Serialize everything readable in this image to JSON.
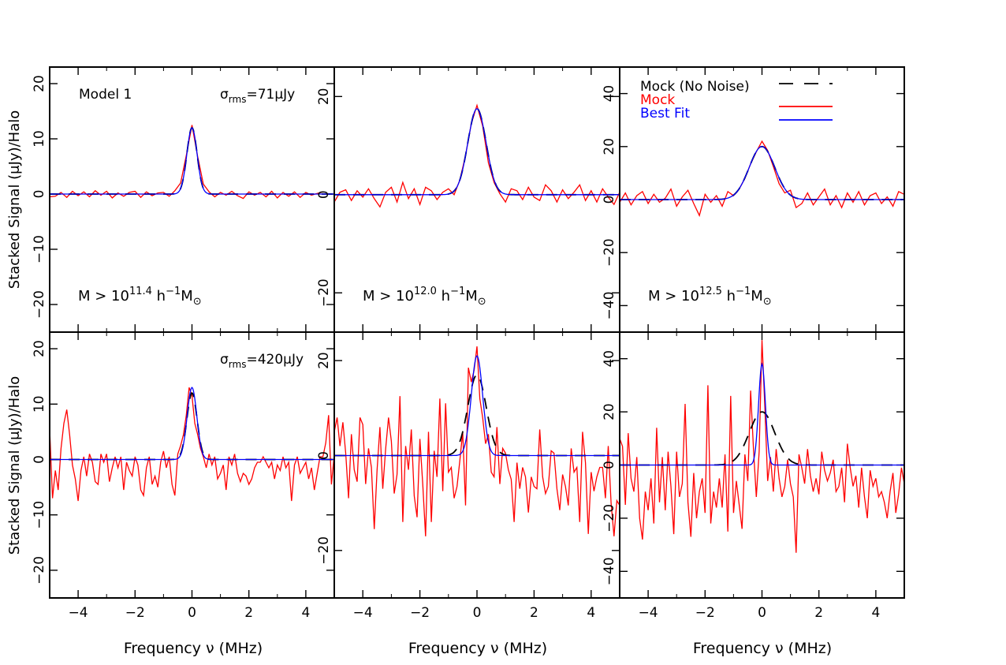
{
  "figure": {
    "ylabel": "Stacked Signal (μJy)/Halo",
    "xlabel": "Frequency ν (MHz)"
  },
  "colors": {
    "mock_no_noise": "#000000",
    "mock": "#ff0000",
    "best_fit": "#0000ff",
    "axes": "#000000"
  },
  "legend": {
    "position": "top-right of panel 3",
    "entries": [
      {
        "label": "Mock (No Noise)",
        "series": "mock_no_noise",
        "style": "dashed"
      },
      {
        "label": "Mock",
        "series": "mock",
        "style": "solid"
      },
      {
        "label": "Best Fit",
        "series": "best_fit",
        "style": "solid"
      }
    ]
  },
  "chart_data": [
    {
      "type": "line",
      "panel": "top-left",
      "xlim": [
        -5,
        5
      ],
      "ylim": [
        -25,
        23
      ],
      "xticks": [
        -4,
        -2,
        0,
        2,
        4
      ],
      "yticks": [
        -20,
        -10,
        0,
        10,
        20
      ],
      "model_label": "Model 1",
      "noise_label": {
        "prefix": "σ",
        "sub": "rms",
        "value": "=71μJy"
      },
      "mass_label": {
        "text": "M > 10",
        "exp": "11.4",
        "unit": " h",
        "unit_exp": "−1",
        "tail": "M",
        "tail_sub": "⊙"
      },
      "amplitude": 12,
      "width": 0.18,
      "mock_x": [
        -5.0,
        -4.8,
        -4.6,
        -4.4,
        -4.2,
        -4.0,
        -3.8,
        -3.6,
        -3.4,
        -3.2,
        -3.0,
        -2.8,
        -2.6,
        -2.4,
        -2.2,
        -2.0,
        -1.8,
        -1.6,
        -1.4,
        -1.2,
        -1.0,
        -0.8,
        -0.6,
        -0.4,
        -0.2,
        0.0,
        0.2,
        0.4,
        0.6,
        0.8,
        1.0,
        1.2,
        1.4,
        1.6,
        1.8,
        2.0,
        2.2,
        2.4,
        2.6,
        2.8,
        3.0,
        3.2,
        3.4,
        3.6,
        3.8,
        4.0,
        4.2,
        4.4,
        4.6
      ],
      "mock_y": [
        -0.5,
        -0.4,
        0.3,
        -0.6,
        0.5,
        -0.3,
        0.4,
        -0.5,
        0.6,
        -0.2,
        0.5,
        -0.7,
        0.2,
        -0.4,
        0.3,
        0.5,
        -0.6,
        0.4,
        -0.3,
        0.2,
        0.3,
        -0.4,
        0.6,
        2.0,
        7.0,
        12.5,
        6.8,
        1.8,
        0.4,
        -0.5,
        0.3,
        -0.2,
        0.5,
        -0.3,
        -0.8,
        0.4,
        -0.2,
        0.3,
        -0.5,
        0.5,
        -0.7,
        0.3,
        -0.4,
        0.4,
        -0.6,
        0.3,
        -0.2,
        0.1,
        0.4
      ]
    },
    {
      "type": "line",
      "panel": "top-middle",
      "xlim": [
        -5,
        5
      ],
      "ylim": [
        -28,
        26
      ],
      "xticks": [
        -4,
        -2,
        0,
        2,
        4
      ],
      "yticks": [
        -20,
        0,
        20
      ],
      "mass_label": {
        "text": "M > 10",
        "exp": "12.0",
        "unit": " h",
        "unit_exp": "−1",
        "tail": "M",
        "tail_sub": "⊙"
      },
      "amplitude": 17.5,
      "width": 0.32,
      "mock_x": [
        -5.0,
        -4.8,
        -4.6,
        -4.4,
        -4.2,
        -4.0,
        -3.8,
        -3.6,
        -3.4,
        -3.2,
        -3.0,
        -2.8,
        -2.6,
        -2.4,
        -2.2,
        -2.0,
        -1.8,
        -1.6,
        -1.4,
        -1.2,
        -1.0,
        -0.8,
        -0.6,
        -0.4,
        -0.2,
        0.0,
        0.2,
        0.4,
        0.6,
        0.8,
        1.0,
        1.2,
        1.4,
        1.6,
        1.8,
        2.0,
        2.2,
        2.4,
        2.6,
        2.8,
        3.0,
        3.2,
        3.4,
        3.6,
        3.8,
        4.0,
        4.2,
        4.4,
        4.6,
        4.8,
        5.0
      ],
      "mock_y": [
        -1.5,
        0.5,
        1.0,
        -1.2,
        0.8,
        -0.5,
        1.2,
        -0.8,
        -2.5,
        0.5,
        1.5,
        -1.5,
        2.5,
        -0.8,
        1.2,
        -2.0,
        1.5,
        0.8,
        -1.0,
        0.5,
        1.2,
        0.0,
        3.0,
        8.0,
        14.5,
        18.2,
        14.0,
        6.5,
        2.5,
        0.2,
        -1.5,
        1.2,
        0.8,
        -1.0,
        1.5,
        -0.5,
        -1.2,
        2.0,
        0.8,
        -1.5,
        1.0,
        -0.8,
        0.5,
        2.0,
        -1.2,
        0.8,
        -1.5,
        1.2,
        -0.5,
        -2.0,
        0.5
      ]
    },
    {
      "type": "line",
      "panel": "top-right",
      "xlim": [
        -5,
        5
      ],
      "ylim": [
        -50,
        50
      ],
      "xticks": [
        -4,
        -2,
        0,
        2,
        4
      ],
      "yticks": [
        -40,
        -20,
        0,
        20,
        40
      ],
      "mass_label": {
        "text": "M > 10",
        "exp": "12.5",
        "unit": " h",
        "unit_exp": "−1",
        "tail": "M",
        "tail_sub": "⊙"
      },
      "amplitude": 20,
      "width": 0.45,
      "mock_x": [
        -5.0,
        -4.8,
        -4.6,
        -4.4,
        -4.2,
        -4.0,
        -3.8,
        -3.6,
        -3.4,
        -3.2,
        -3.0,
        -2.8,
        -2.6,
        -2.4,
        -2.2,
        -2.0,
        -1.8,
        -1.6,
        -1.4,
        -1.2,
        -1.0,
        -0.8,
        -0.6,
        -0.4,
        -0.2,
        0.0,
        0.2,
        0.4,
        0.6,
        0.8,
        1.0,
        1.2,
        1.4,
        1.6,
        1.8,
        2.0,
        2.2,
        2.4,
        2.6,
        2.8,
        3.0,
        3.2,
        3.4,
        3.6,
        3.8,
        4.0,
        4.2,
        4.4,
        4.6,
        4.8,
        5.0
      ],
      "mock_y": [
        -1.0,
        2.5,
        -2.0,
        1.5,
        3.0,
        -1.5,
        2.0,
        -1.0,
        0.5,
        4.0,
        -2.5,
        1.0,
        3.5,
        -1.5,
        -6.0,
        2.0,
        -1.0,
        1.5,
        -2.5,
        3.0,
        1.5,
        4.0,
        8.0,
        13.5,
        18.0,
        22.0,
        18.5,
        12.5,
        6.0,
        2.5,
        3.5,
        -3.0,
        -1.5,
        2.5,
        -2.0,
        1.0,
        4.0,
        -2.0,
        1.5,
        -3.0,
        2.5,
        -1.0,
        3.0,
        -2.0,
        1.5,
        2.5,
        -1.5,
        1.0,
        -2.5,
        3.0,
        2.0
      ]
    },
    {
      "type": "line",
      "panel": "bottom-left",
      "xlim": [
        -5,
        5
      ],
      "ylim": [
        -25,
        23
      ],
      "xticks": [
        -4,
        -2,
        0,
        2,
        4
      ],
      "yticks": [
        -20,
        -10,
        0,
        10,
        20
      ],
      "noise_label": {
        "prefix": "σ",
        "sub": "rms",
        "value": "=420μJy"
      },
      "amplitude": 12,
      "width": 0.18,
      "fit_amplitude": 13,
      "fit_width": 0.17,
      "mock_x": [
        -5.0,
        -4.9,
        -4.8,
        -4.7,
        -4.6,
        -4.5,
        -4.4,
        -4.3,
        -4.2,
        -4.1,
        -4.0,
        -3.9,
        -3.8,
        -3.7,
        -3.6,
        -3.5,
        -3.4,
        -3.3,
        -3.2,
        -3.1,
        -3.0,
        -2.9,
        -2.8,
        -2.7,
        -2.6,
        -2.5,
        -2.4,
        -2.3,
        -2.2,
        -2.1,
        -2.0,
        -1.9,
        -1.8,
        -1.7,
        -1.6,
        -1.5,
        -1.4,
        -1.3,
        -1.2,
        -1.1,
        -1.0,
        -0.9,
        -0.8,
        -0.7,
        -0.6,
        -0.5,
        -0.4,
        -0.3,
        -0.2,
        -0.1,
        0.0,
        0.1,
        0.2,
        0.3,
        0.4,
        0.5,
        0.6,
        0.7,
        0.8,
        0.9,
        1.0,
        1.1,
        1.2,
        1.3,
        1.4,
        1.5,
        1.6,
        1.7,
        1.8,
        1.9,
        2.0,
        2.1,
        2.2,
        2.3,
        2.4,
        2.5,
        2.6,
        2.7,
        2.8,
        2.9,
        3.0,
        3.1,
        3.2,
        3.3,
        3.4,
        3.5,
        3.6,
        3.7,
        3.8,
        3.9,
        4.0,
        4.1,
        4.2,
        4.3,
        4.4,
        4.5,
        4.6,
        4.7,
        4.8,
        4.9,
        5.0
      ],
      "mock_y": [
        5.5,
        -7.0,
        -2.0,
        -5.5,
        2.0,
        6.5,
        9.0,
        4.5,
        -1.0,
        -3.5,
        -7.5,
        -2.0,
        0.5,
        -3.0,
        1.0,
        -0.5,
        -4.0,
        -4.5,
        1.0,
        -0.5,
        1.0,
        -4.0,
        -1.5,
        0.5,
        -1.5,
        0.5,
        -5.5,
        -0.5,
        -2.0,
        -3.0,
        0.5,
        -1.0,
        -5.5,
        -6.5,
        -1.5,
        0.5,
        -4.5,
        -3.0,
        -5.0,
        -0.5,
        1.5,
        -1.5,
        0.5,
        -4.5,
        -6.5,
        1.0,
        2.5,
        4.5,
        8.0,
        13.0,
        11.5,
        6.5,
        4.5,
        2.0,
        0.5,
        -1.5,
        1.0,
        -1.0,
        0.5,
        -3.5,
        -2.5,
        -1.0,
        -5.5,
        0.5,
        -1.0,
        1.0,
        -2.5,
        -4.0,
        -2.5,
        -3.0,
        -4.5,
        -3.5,
        -1.5,
        -0.5,
        -0.5,
        0.5,
        -0.5,
        -1.5,
        -0.5,
        -3.5,
        -1.0,
        -2.0,
        0.5,
        -1.5,
        -0.5,
        -7.5,
        -1.0,
        0.5,
        -2.5,
        -1.5,
        -0.5,
        -3.5,
        -1.5,
        -5.5,
        -2.5,
        0.5,
        0.5,
        3.0,
        8.0,
        -4.5,
        1.0
      ]
    },
    {
      "type": "line",
      "panel": "bottom-middle",
      "xlim": [
        -5,
        5
      ],
      "ylim": [
        -30,
        26
      ],
      "xticks": [
        -4,
        -2,
        0,
        2,
        4
      ],
      "yticks": [
        -20,
        0,
        20
      ],
      "amplitude": 17,
      "width": 0.32,
      "fit_amplitude": 21,
      "fit_width": 0.2,
      "mock_x": [
        -5.0,
        -4.9,
        -4.8,
        -4.7,
        -4.6,
        -4.5,
        -4.4,
        -4.3,
        -4.2,
        -4.1,
        -4.0,
        -3.9,
        -3.8,
        -3.7,
        -3.6,
        -3.5,
        -3.4,
        -3.3,
        -3.2,
        -3.1,
        -3.0,
        -2.9,
        -2.8,
        -2.7,
        -2.6,
        -2.5,
        -2.4,
        -2.3,
        -2.2,
        -2.1,
        -2.0,
        -1.9,
        -1.8,
        -1.7,
        -1.6,
        -1.5,
        -1.4,
        -1.3,
        -1.2,
        -1.1,
        -1.0,
        -0.9,
        -0.8,
        -0.7,
        -0.6,
        -0.5,
        -0.4,
        -0.3,
        -0.2,
        -0.1,
        0.0,
        0.1,
        0.2,
        0.3,
        0.4,
        0.5,
        0.6,
        0.7,
        0.8,
        0.9,
        1.0,
        1.1,
        1.2,
        1.3,
        1.4,
        1.5,
        1.6,
        1.7,
        1.8,
        1.9,
        2.0,
        2.1,
        2.2,
        2.3,
        2.4,
        2.5,
        2.6,
        2.7,
        2.8,
        2.9,
        3.0,
        3.1,
        3.2,
        3.3,
        3.4,
        3.5,
        3.6,
        3.7,
        3.8,
        3.9,
        4.0,
        4.1,
        4.2,
        4.3,
        4.4,
        4.5,
        4.6,
        4.7,
        4.8,
        4.9,
        5.0
      ],
      "mock_y": [
        5.0,
        8.0,
        2.0,
        7.0,
        0.5,
        -9.0,
        4.5,
        -3.0,
        -5.5,
        8.0,
        6.5,
        -6.0,
        1.5,
        -2.5,
        -15.5,
        -3.0,
        6.0,
        -7.0,
        1.5,
        8.0,
        3.0,
        -8.0,
        -4.0,
        12.5,
        -14.0,
        2.0,
        -3.0,
        5.5,
        -8.5,
        -13.0,
        3.5,
        -6.0,
        -17.0,
        5.0,
        -14.0,
        1.0,
        -4.5,
        12.0,
        -7.5,
        11.0,
        -3.5,
        -2.5,
        -9.0,
        -6.5,
        -1.0,
        5.0,
        -10.5,
        18.5,
        15.5,
        18.0,
        23.0,
        12.0,
        8.0,
        2.5,
        4.5,
        -3.5,
        -4.5,
        6.0,
        -6.0,
        1.5,
        0.5,
        -3.0,
        -5.0,
        -14.0,
        -1.5,
        -7.0,
        -2.5,
        -4.5,
        -12.0,
        -4.5,
        -6.5,
        -7.0,
        5.5,
        -4.5,
        -8.0,
        -6.5,
        1.0,
        0.5,
        -7.0,
        -11.5,
        -4.0,
        -6.5,
        -10.5,
        1.5,
        -3.5,
        -2.5,
        -14.0,
        5.0,
        -1.5,
        -16.5,
        -3.5,
        -7.5,
        -4.5,
        -2.5,
        -2.5,
        -9.0,
        2.0,
        -10.0,
        -17.0,
        -9.5,
        -10.5
      ]
    },
    {
      "type": "line",
      "panel": "bottom-right",
      "xlim": [
        -5,
        5
      ],
      "ylim": [
        -50,
        50
      ],
      "xticks": [
        -4,
        -2,
        0,
        2,
        4
      ],
      "yticks": [
        -40,
        -20,
        0,
        20,
        40
      ],
      "amplitude": 20,
      "width": 0.45,
      "fit_amplitude": 38,
      "fit_width": 0.12,
      "mock_x": [
        -5.0,
        -4.9,
        -4.8,
        -4.7,
        -4.6,
        -4.5,
        -4.4,
        -4.3,
        -4.2,
        -4.1,
        -4.0,
        -3.9,
        -3.8,
        -3.7,
        -3.6,
        -3.5,
        -3.4,
        -3.3,
        -3.2,
        -3.1,
        -3.0,
        -2.9,
        -2.8,
        -2.7,
        -2.6,
        -2.5,
        -2.4,
        -2.3,
        -2.2,
        -2.1,
        -2.0,
        -1.9,
        -1.8,
        -1.7,
        -1.6,
        -1.5,
        -1.4,
        -1.3,
        -1.2,
        -1.1,
        -1.0,
        -0.9,
        -0.8,
        -0.7,
        -0.6,
        -0.5,
        -0.4,
        -0.3,
        -0.2,
        -0.1,
        0.0,
        0.1,
        0.2,
        0.3,
        0.4,
        0.5,
        0.6,
        0.7,
        0.8,
        0.9,
        1.0,
        1.1,
        1.2,
        1.3,
        1.4,
        1.5,
        1.6,
        1.7,
        1.8,
        1.9,
        2.0,
        2.1,
        2.2,
        2.3,
        2.4,
        2.5,
        2.6,
        2.7,
        2.8,
        2.9,
        3.0,
        3.1,
        3.2,
        3.3,
        3.4,
        3.5,
        3.6,
        3.7,
        3.8,
        3.9,
        4.0,
        4.1,
        4.2,
        4.3,
        4.4,
        4.5,
        4.6,
        4.7,
        4.8,
        4.9,
        5.0
      ],
      "mock_y": [
        10.0,
        7.0,
        -15.0,
        12.0,
        -5.0,
        -10.0,
        3.0,
        -20.0,
        -28.0,
        -10.0,
        -17.0,
        -5.0,
        -22.0,
        14.0,
        -14.0,
        3.0,
        -17.0,
        5.0,
        -8.0,
        -26.0,
        5.0,
        -12.0,
        -7.0,
        23.0,
        -14.0,
        -27.0,
        -3.0,
        -20.0,
        -10.0,
        -5.0,
        -18.0,
        30.0,
        -22.0,
        -10.0,
        -16.0,
        -5.0,
        -16.0,
        4.0,
        -25.0,
        26.0,
        -18.0,
        -6.0,
        -15.0,
        -24.0,
        4.0,
        -6.0,
        28.0,
        6.0,
        -12.0,
        5.0,
        47.0,
        22.0,
        -6.0,
        3.0,
        -10.0,
        6.0,
        -5.0,
        -12.0,
        -8.0,
        2.0,
        -7.0,
        -12.0,
        -33.0,
        4.0,
        -1.0,
        -7.0,
        6.0,
        -4.0,
        -10.0,
        -5.0,
        -11.0,
        5.0,
        -2.0,
        -6.0,
        -3.0,
        2.0,
        -10.0,
        -8.0,
        -1.0,
        -14.0,
        8.0,
        -1.0,
        -8.0,
        -4.0,
        -16.0,
        -1.0,
        -12.0,
        -20.0,
        -2.0,
        -8.0,
        -5.0,
        -12.0,
        -10.0,
        -14.0,
        -20.0,
        -10.0,
        -3.0,
        -18.0,
        -11.0,
        -1.0,
        -7.0
      ]
    }
  ]
}
